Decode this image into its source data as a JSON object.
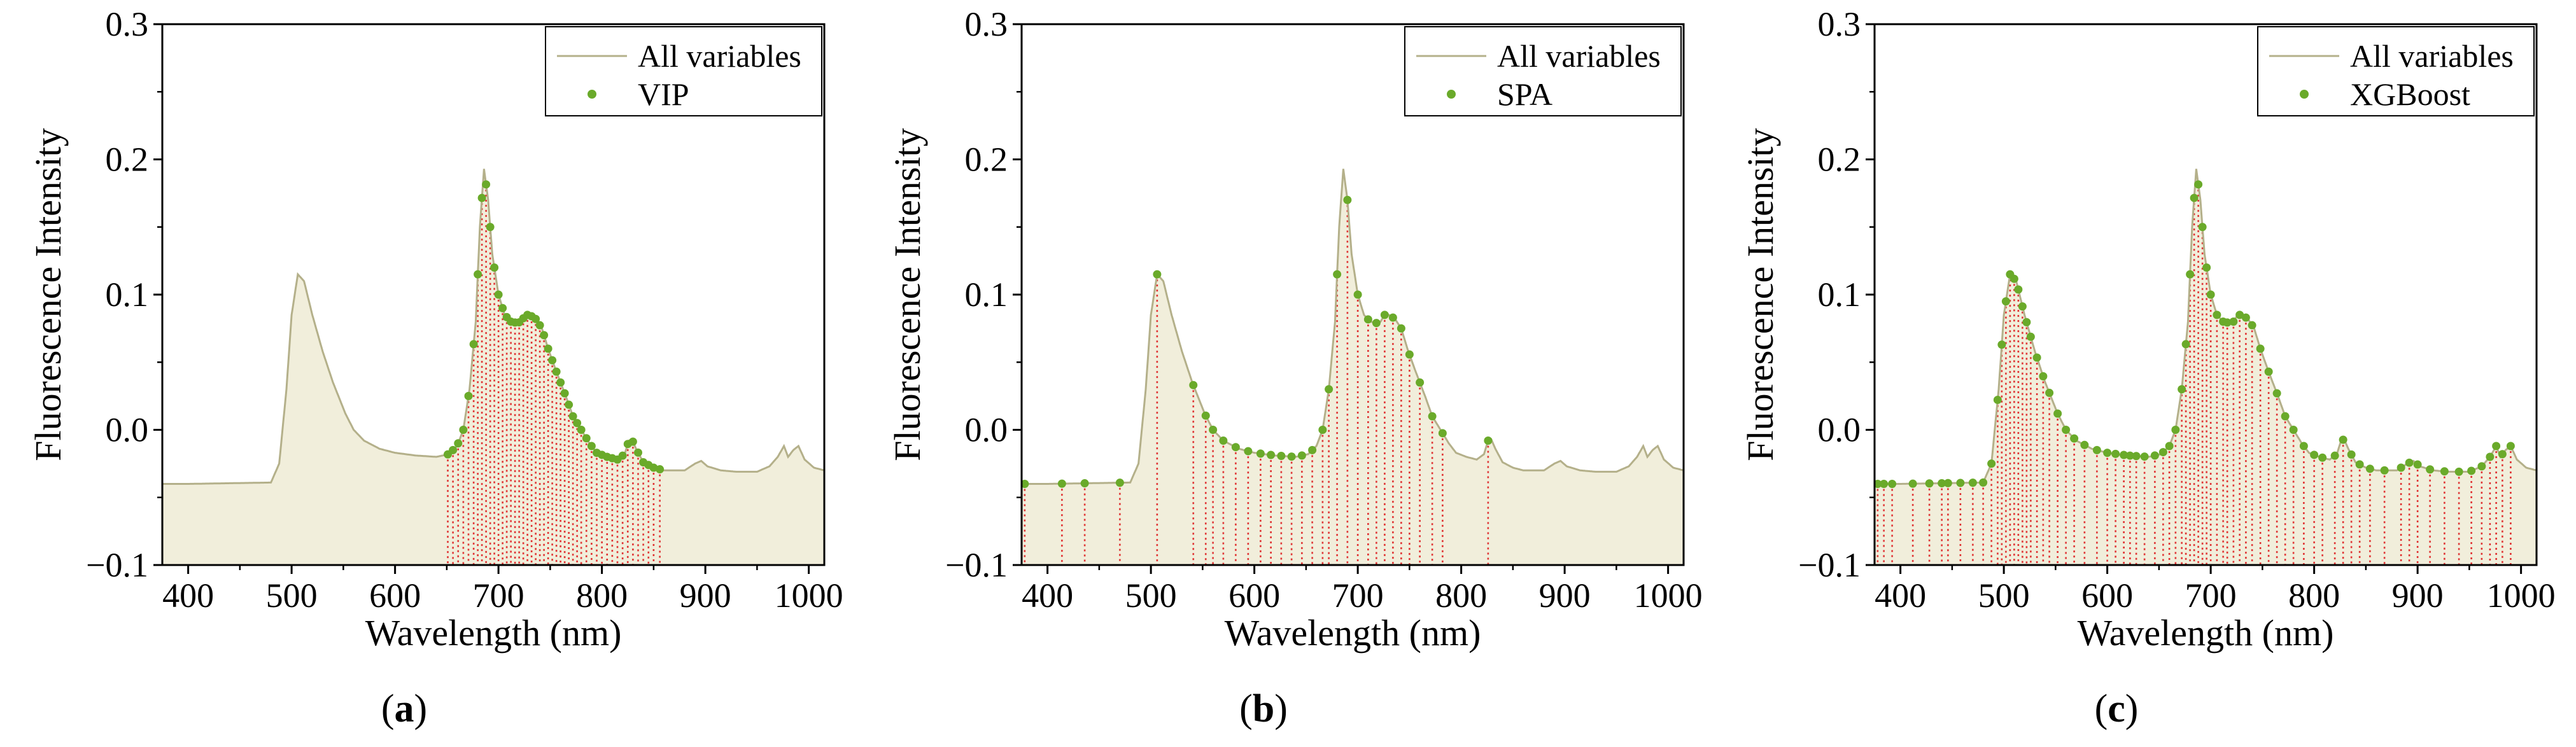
{
  "figure": {
    "colors": {
      "spectrum_line": "#b4b08a",
      "spectrum_fill": "#f1eedb",
      "marker": "#6aaa2a",
      "dropline": "#e03535",
      "axis": "#000000"
    }
  },
  "chart_data": [
    {
      "type": "line",
      "caption_letter": "a",
      "method": "VIP",
      "xlabel": "Wavelength (nm)",
      "ylabel": "Fluorescence Intensity",
      "xlim": [
        375,
        1015
      ],
      "ylim": [
        -0.1,
        0.3
      ],
      "xticks": [
        400,
        500,
        600,
        700,
        800,
        900,
        1000
      ],
      "yticks": [
        {
          "value": -0.1,
          "label": "−0.1"
        },
        {
          "value": 0.0,
          "label": "0.0"
        },
        {
          "value": 0.1,
          "label": "0.1"
        },
        {
          "value": 0.2,
          "label": "0.2"
        },
        {
          "value": 0.3,
          "label": "0.3"
        }
      ],
      "legend": [
        "All variables",
        "VIP"
      ],
      "selected_wavelengths": [
        651,
        656,
        661,
        666,
        671,
        676,
        680,
        684,
        688,
        692,
        696,
        700,
        704,
        708,
        712,
        716,
        720,
        724,
        728,
        732,
        736,
        740,
        744,
        748,
        752,
        756,
        760,
        764,
        768,
        772,
        776,
        780,
        785,
        790,
        795,
        800,
        805,
        810,
        815,
        820,
        825,
        830,
        835,
        840,
        845,
        850,
        856
      ]
    },
    {
      "type": "line",
      "caption_letter": "b",
      "method": "SPA",
      "xlabel": "Wavelength (nm)",
      "ylabel": "Fluorescence Intensity",
      "xlim": [
        375,
        1015
      ],
      "ylim": [
        -0.1,
        0.3
      ],
      "xticks": [
        400,
        500,
        600,
        700,
        800,
        900,
        1000
      ],
      "yticks": [
        {
          "value": -0.1,
          "label": "−0.1"
        },
        {
          "value": 0.0,
          "label": "0.0"
        },
        {
          "value": 0.1,
          "label": "0.1"
        },
        {
          "value": 0.2,
          "label": "0.2"
        },
        {
          "value": 0.3,
          "label": "0.3"
        }
      ],
      "legend": [
        "All variables",
        "SPA"
      ],
      "selected_wavelengths": [
        378,
        414,
        436,
        470,
        506,
        541,
        553,
        560,
        570,
        582,
        594,
        606,
        616,
        626,
        636,
        646,
        656,
        666,
        672,
        680,
        690,
        700,
        710,
        718,
        726,
        734,
        742,
        750,
        760,
        772,
        782,
        826
      ]
    },
    {
      "type": "line",
      "caption_letter": "c",
      "method": "XGBoost",
      "xlabel": "Wavelength (nm)",
      "ylabel": "Fluorescence Intensity",
      "xlim": [
        375,
        1015
      ],
      "ylim": [
        -0.1,
        0.3
      ],
      "xticks": [
        400,
        500,
        600,
        700,
        800,
        900,
        1000
      ],
      "yticks": [
        {
          "value": -0.1,
          "label": "−0.1"
        },
        {
          "value": 0.0,
          "label": "0.0"
        },
        {
          "value": 0.1,
          "label": "0.1"
        },
        {
          "value": 0.2,
          "label": "0.2"
        },
        {
          "value": 0.3,
          "label": "0.3"
        }
      ],
      "legend": [
        "All variables",
        "XGBoost"
      ],
      "selected_wavelengths": [
        378,
        384,
        392,
        412,
        428,
        440,
        446,
        458,
        470,
        480,
        488,
        494,
        498,
        502,
        506,
        510,
        514,
        518,
        522,
        526,
        532,
        538,
        544,
        552,
        560,
        568,
        578,
        590,
        600,
        608,
        616,
        622,
        628,
        636,
        646,
        654,
        660,
        666,
        672,
        676,
        680,
        684,
        688,
        692,
        696,
        700,
        706,
        712,
        716,
        722,
        728,
        734,
        740,
        748,
        756,
        764,
        772,
        780,
        790,
        800,
        808,
        820,
        828,
        836,
        844,
        854,
        868,
        884,
        892,
        900,
        912,
        926,
        940,
        952,
        962,
        970,
        976,
        982,
        990
      ]
    }
  ],
  "spectrum_keypoints": [
    [
      375,
      -0.04
    ],
    [
      400,
      -0.04
    ],
    [
      480,
      -0.039
    ],
    [
      488,
      -0.025
    ],
    [
      495,
      0.03
    ],
    [
      500,
      0.085
    ],
    [
      506,
      0.115
    ],
    [
      512,
      0.11
    ],
    [
      520,
      0.085
    ],
    [
      530,
      0.058
    ],
    [
      540,
      0.035
    ],
    [
      552,
      0.012
    ],
    [
      560,
      0.0
    ],
    [
      570,
      -0.008
    ],
    [
      585,
      -0.014
    ],
    [
      600,
      -0.017
    ],
    [
      620,
      -0.019
    ],
    [
      640,
      -0.02
    ],
    [
      652,
      -0.018
    ],
    [
      660,
      -0.012
    ],
    [
      666,
      0.0
    ],
    [
      672,
      0.03
    ],
    [
      678,
      0.08
    ],
    [
      682,
      0.15
    ],
    [
      686,
      0.193
    ],
    [
      690,
      0.17
    ],
    [
      694,
      0.13
    ],
    [
      700,
      0.1
    ],
    [
      706,
      0.085
    ],
    [
      712,
      0.08
    ],
    [
      718,
      0.079
    ],
    [
      722,
      0.08
    ],
    [
      726,
      0.085
    ],
    [
      730,
      0.085
    ],
    [
      736,
      0.082
    ],
    [
      742,
      0.075
    ],
    [
      748,
      0.06
    ],
    [
      755,
      0.045
    ],
    [
      765,
      0.025
    ],
    [
      772,
      0.01
    ],
    [
      780,
      0.0
    ],
    [
      788,
      -0.01
    ],
    [
      795,
      -0.017
    ],
    [
      805,
      -0.02
    ],
    [
      815,
      -0.022
    ],
    [
      822,
      -0.018
    ],
    [
      826,
      -0.008
    ],
    [
      829,
      -0.007
    ],
    [
      833,
      -0.014
    ],
    [
      840,
      -0.024
    ],
    [
      850,
      -0.028
    ],
    [
      860,
      -0.03
    ],
    [
      880,
      -0.03
    ],
    [
      890,
      -0.025
    ],
    [
      896,
      -0.023
    ],
    [
      902,
      -0.027
    ],
    [
      915,
      -0.03
    ],
    [
      930,
      -0.031
    ],
    [
      950,
      -0.031
    ],
    [
      962,
      -0.027
    ],
    [
      970,
      -0.02
    ],
    [
      976,
      -0.012
    ],
    [
      980,
      -0.02
    ],
    [
      985,
      -0.015
    ],
    [
      990,
      -0.012
    ],
    [
      996,
      -0.022
    ],
    [
      1005,
      -0.028
    ],
    [
      1015,
      -0.03
    ]
  ]
}
